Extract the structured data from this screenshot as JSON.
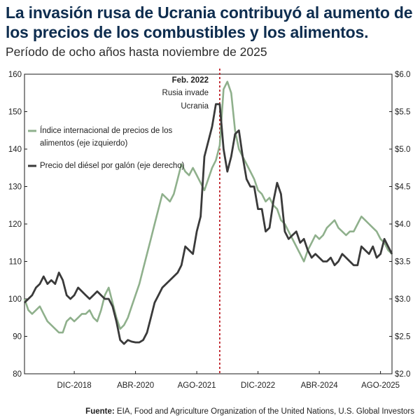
{
  "title": "La invasión rusa de Ucrania contribuyó al aumento de los precios de los combustibles y los alimentos.",
  "subtitle": "Período de ocho años hasta noviembre de 2025",
  "source_label": "Fuente:",
  "source_text": "EIA, Food and Agriculture Organization of the United Nations, U.S. Global Investors",
  "annotation": {
    "date": "Feb. 2022",
    "line1": "Rusia invade",
    "line2": "Ucrania"
  },
  "colors": {
    "food": "#8fb08c",
    "diesel": "#3a3a3a",
    "event_line": "#c0232b",
    "title": "#0e2d4f"
  },
  "chart_data": {
    "type": "line",
    "title": "La invasión rusa de Ucrania contribuyó al aumento de los precios de los combustibles y los alimentos.",
    "x_range": [
      "2017-11",
      "2025-11"
    ],
    "x_tick_labels": [
      "DIC-2018",
      "ABR-2020",
      "AGO-2021",
      "DIC-2022",
      "ABR-2024",
      "AGO-2025"
    ],
    "y_left": {
      "min": 80,
      "max": 160,
      "ticks": [
        "80",
        "90",
        "100",
        "110",
        "120",
        "130",
        "140",
        "150",
        "160"
      ]
    },
    "y_right": {
      "min": 2.0,
      "max": 6.0,
      "ticks": [
        "$2.0",
        "$2.5",
        "$3.0",
        "$3.5",
        "$4.0",
        "$4.5",
        "$5.0",
        "$5.5",
        "$6.0"
      ]
    },
    "event_x": 51,
    "series": [
      {
        "name": "Índice internacional de precios de los alimentos (eje izquierdo)",
        "legend_line1": "Índice internacional de precios de los",
        "legend_line2": "alimentos (eje izquierdo)",
        "axis": "left",
        "x": [
          0,
          1,
          2,
          3,
          4,
          5,
          6,
          7,
          8,
          9,
          10,
          11,
          12,
          13,
          14,
          15,
          16,
          17,
          18,
          19,
          20,
          21,
          22,
          23,
          24,
          25,
          26,
          27,
          28,
          29,
          30,
          31,
          32,
          33,
          34,
          35,
          36,
          37,
          38,
          39,
          40,
          41,
          42,
          43,
          44,
          45,
          46,
          47,
          48,
          49,
          50,
          51,
          52,
          53,
          54,
          55,
          56,
          57,
          58,
          59,
          60,
          61,
          62,
          63,
          64,
          65,
          66,
          67,
          68,
          69,
          70,
          71,
          72,
          73,
          74,
          75,
          76,
          77,
          78,
          79,
          80,
          81,
          82,
          83,
          84,
          85,
          86,
          87,
          88,
          89,
          90,
          91,
          92,
          93,
          94,
          95,
          96
        ],
        "values": [
          100,
          97,
          96,
          97,
          98,
          96,
          94,
          93,
          92,
          91,
          91,
          94,
          95,
          94,
          95,
          96,
          96,
          97,
          95,
          94,
          97,
          101,
          103,
          99,
          95,
          92,
          93,
          95,
          98,
          101,
          104,
          108,
          112,
          116,
          120,
          124,
          128,
          127,
          126,
          128,
          132,
          136,
          134,
          133,
          135,
          133,
          131,
          129,
          132,
          135,
          137,
          141,
          156,
          158,
          155,
          145,
          140,
          138,
          136,
          134,
          132,
          129,
          128,
          126,
          127,
          125,
          124,
          121,
          120,
          118,
          116,
          114,
          112,
          110,
          113,
          115,
          117,
          116,
          117,
          119,
          120,
          121,
          119,
          118,
          117,
          118,
          118,
          120,
          122,
          121,
          120,
          119,
          118,
          116,
          115,
          113,
          112
        ]
      },
      {
        "name": "Precio del diésel por galón (eje derecho)",
        "legend_line1": "Precio del diésel por galón (eje derecho)",
        "axis": "right",
        "x": [
          0,
          1,
          2,
          3,
          4,
          5,
          6,
          7,
          8,
          9,
          10,
          11,
          12,
          13,
          14,
          15,
          16,
          17,
          18,
          19,
          20,
          21,
          22,
          23,
          24,
          25,
          26,
          27,
          28,
          29,
          30,
          31,
          32,
          33,
          34,
          35,
          36,
          37,
          38,
          39,
          40,
          41,
          42,
          43,
          44,
          45,
          46,
          47,
          48,
          49,
          50,
          51,
          52,
          53,
          54,
          55,
          56,
          57,
          58,
          59,
          60,
          61,
          62,
          63,
          64,
          65,
          66,
          67,
          68,
          69,
          70,
          71,
          72,
          73,
          74,
          75,
          76,
          77,
          78,
          79,
          80,
          81,
          82,
          83,
          84,
          85,
          86,
          87,
          88,
          89,
          90,
          91,
          92,
          93,
          94,
          95,
          96
        ],
        "values": [
          2.95,
          3.0,
          3.05,
          3.15,
          3.2,
          3.3,
          3.2,
          3.25,
          3.2,
          3.35,
          3.25,
          3.05,
          3.0,
          3.05,
          3.15,
          3.1,
          3.05,
          3.0,
          3.05,
          3.1,
          3.05,
          3.0,
          3.0,
          2.9,
          2.7,
          2.45,
          2.4,
          2.45,
          2.43,
          2.42,
          2.42,
          2.45,
          2.55,
          2.75,
          2.95,
          3.05,
          3.15,
          3.2,
          3.25,
          3.3,
          3.35,
          3.45,
          3.7,
          3.65,
          3.6,
          3.9,
          4.1,
          4.9,
          5.1,
          5.3,
          5.6,
          5.6,
          5.0,
          4.7,
          4.9,
          5.2,
          5.25,
          4.9,
          4.6,
          4.5,
          4.5,
          4.2,
          4.2,
          3.9,
          3.95,
          4.3,
          4.55,
          4.4,
          3.9,
          3.8,
          3.85,
          3.9,
          3.75,
          3.8,
          3.65,
          3.55,
          3.6,
          3.55,
          3.5,
          3.5,
          3.55,
          3.45,
          3.5,
          3.6,
          3.55,
          3.5,
          3.45,
          3.45,
          3.7,
          3.65,
          3.6,
          3.7,
          3.55,
          3.6,
          3.8,
          3.7,
          3.6
        ]
      }
    ]
  }
}
